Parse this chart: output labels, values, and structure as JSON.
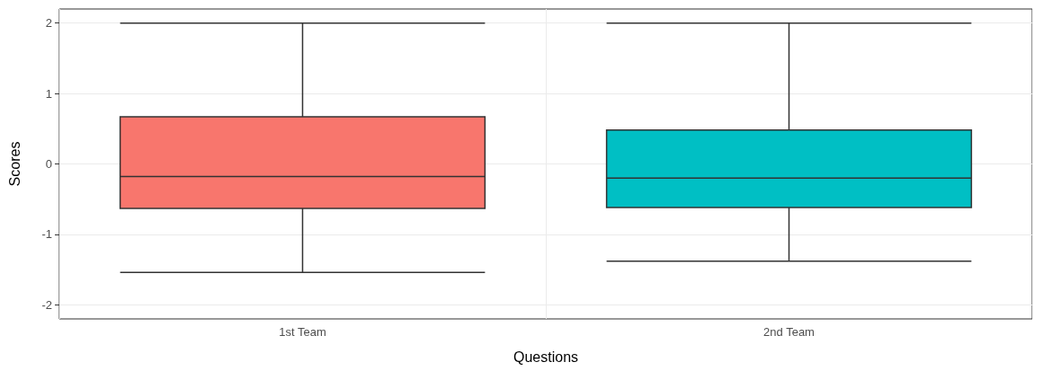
{
  "chart_data": {
    "type": "box",
    "xlabel": "Questions",
    "ylabel": "Scores",
    "categories": [
      "1st Team",
      "2nd Team"
    ],
    "colors": [
      "#f8766d",
      "#00bfc4"
    ],
    "boxes": [
      {
        "low": -1.54,
        "q1": -0.63,
        "median": -0.18,
        "q3": 0.67,
        "high": 2.0
      },
      {
        "low": -1.38,
        "q1": -0.62,
        "median": -0.2,
        "q3": 0.48,
        "high": 2.0
      }
    ],
    "ylim": [
      -2.2,
      2.2
    ],
    "yticks": [
      -2,
      -1,
      0,
      1,
      2
    ],
    "grid": true
  }
}
